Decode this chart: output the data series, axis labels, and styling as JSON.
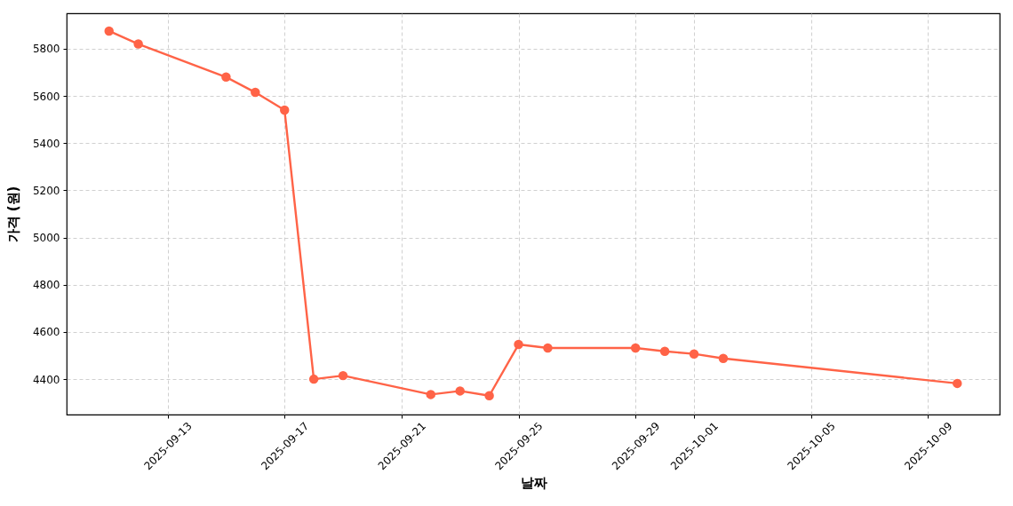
{
  "chart_data": {
    "type": "line",
    "xlabel": "날짜",
    "ylabel": "가격 (원)",
    "x": [
      "2025-09-11",
      "2025-09-12",
      "2025-09-15",
      "2025-09-16",
      "2025-09-17",
      "2025-09-18",
      "2025-09-19",
      "2025-09-22",
      "2025-09-23",
      "2025-09-24",
      "2025-09-25",
      "2025-09-26",
      "2025-09-29",
      "2025-09-30",
      "2025-10-01",
      "2025-10-02",
      "2025-10-10"
    ],
    "series": [
      {
        "color": "#ff6347",
        "values": [
          5875,
          5820,
          5680,
          5615,
          5540,
          4400,
          4415,
          4335,
          4350,
          4330,
          4547,
          4532,
          4532,
          4518,
          4507,
          4488,
          4382
        ]
      }
    ],
    "xlim": [
      "2025-09-09T13:12",
      "2025-10-11T10:48"
    ],
    "xticks": [
      "2025-09-13",
      "2025-09-17",
      "2025-09-21",
      "2025-09-25",
      "2025-09-29",
      "2025-10-01",
      "2025-10-05",
      "2025-10-09"
    ],
    "ylim": [
      4250,
      5950
    ],
    "yticks": [
      4400,
      4600,
      4800,
      5000,
      5200,
      5400,
      5600,
      5800
    ],
    "grid": true,
    "marker": "circle",
    "line_style": "solid"
  }
}
